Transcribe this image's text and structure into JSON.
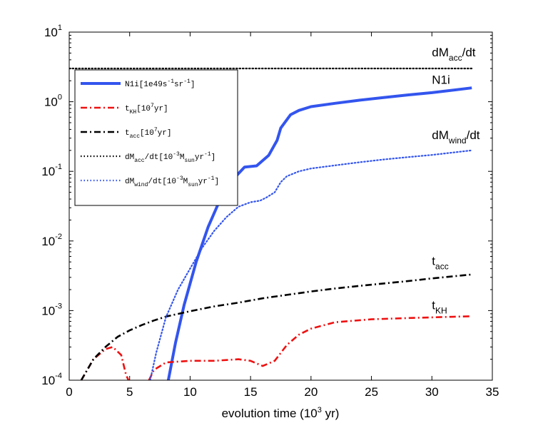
{
  "chart_data": {
    "type": "line",
    "title": "",
    "xlabel": "evolution time (10",
    "xlabel_sup": "3",
    "xlabel_tail": " yr)",
    "ylabel": "",
    "xlim": [
      0,
      35
    ],
    "ylim": [
      0.0001,
      10
    ],
    "yscale": "log",
    "x_ticks": [
      0,
      5,
      10,
      15,
      20,
      25,
      30,
      35
    ],
    "y_ticks": [
      {
        "value": 0.0001,
        "exp": "-4"
      },
      {
        "value": 0.001,
        "exp": "-3"
      },
      {
        "value": 0.01,
        "exp": "-2"
      },
      {
        "value": 0.1,
        "exp": "-1"
      },
      {
        "value": 1,
        "exp": "0"
      },
      {
        "value": 10,
        "exp": "1"
      }
    ],
    "y_tick_base": "10",
    "legend_position": "top-left",
    "series": [
      {
        "name": "N1i",
        "legend": {
          "main": "N1i[1e49s",
          "sup1": "-1",
          "mid": "sr",
          "sup2": "-1",
          "tail": "]"
        },
        "color": "#3355ee",
        "style": "solid",
        "points": [
          [
            8.2,
            0.0001
          ],
          [
            8.8,
            0.00035
          ],
          [
            9.5,
            0.0012
          ],
          [
            10.5,
            0.005
          ],
          [
            11.5,
            0.016
          ],
          [
            12.5,
            0.04
          ],
          [
            13.5,
            0.075
          ],
          [
            14.5,
            0.115
          ],
          [
            15.5,
            0.12
          ],
          [
            16.5,
            0.17
          ],
          [
            17.2,
            0.28
          ],
          [
            17.5,
            0.42
          ],
          [
            18.3,
            0.65
          ],
          [
            19,
            0.75
          ],
          [
            20,
            0.85
          ],
          [
            22,
            0.95
          ],
          [
            24,
            1.05
          ],
          [
            26,
            1.15
          ],
          [
            28,
            1.25
          ],
          [
            30,
            1.35
          ],
          [
            33.3,
            1.58
          ]
        ]
      },
      {
        "name": "t_KH",
        "legend": {
          "main": "t",
          "sub": "KH",
          "tail": "[10",
          "sup": "7",
          "tail2": "yr]"
        },
        "color": "#ee1111",
        "style": "dashdot",
        "segments": [
          [
            [
              1,
              0.0001
            ],
            [
              2,
              0.0002
            ],
            [
              3,
              0.00028
            ],
            [
              3.6,
              0.0003
            ],
            [
              4.3,
              0.00023
            ],
            [
              4.7,
              0.00012
            ],
            [
              4.9,
              0.0001
            ]
          ],
          [
            [
              6.6,
              0.0001
            ],
            [
              7,
              0.00014
            ],
            [
              8,
              0.00018
            ],
            [
              10,
              0.00019
            ],
            [
              12,
              0.00019
            ],
            [
              14,
              0.0002
            ],
            [
              15,
              0.00019
            ],
            [
              16,
              0.00016
            ],
            [
              17,
              0.00019
            ],
            [
              18,
              0.00032
            ],
            [
              19,
              0.00045
            ],
            [
              20,
              0.00055
            ],
            [
              22,
              0.00068
            ],
            [
              25,
              0.00075
            ],
            [
              28,
              0.00078
            ],
            [
              30,
              0.0008
            ],
            [
              33.3,
              0.00083
            ]
          ]
        ]
      },
      {
        "name": "t_acc",
        "legend": {
          "main": "t",
          "sub": "acc",
          "tail": "[10",
          "sup": "7",
          "tail2": "yr]"
        },
        "color": "#000000",
        "style": "dashdot",
        "points": [
          [
            1,
            0.0001
          ],
          [
            2,
            0.0002
          ],
          [
            3,
            0.0003
          ],
          [
            4,
            0.00042
          ],
          [
            5,
            0.00052
          ],
          [
            6,
            0.00062
          ],
          [
            7,
            0.00072
          ],
          [
            8,
            0.00082
          ],
          [
            10,
            0.00098
          ],
          [
            12,
            0.00115
          ],
          [
            14,
            0.0013
          ],
          [
            16,
            0.0015
          ],
          [
            18,
            0.00168
          ],
          [
            20,
            0.00188
          ],
          [
            22,
            0.00208
          ],
          [
            24,
            0.00226
          ],
          [
            26,
            0.00245
          ],
          [
            28,
            0.00265
          ],
          [
            30,
            0.0029
          ],
          [
            33.3,
            0.0033
          ]
        ]
      },
      {
        "name": "dM_acc/dt",
        "legend": {
          "main": "dM",
          "sub": "acc",
          "tail": "/dt[10",
          "sup": "-3",
          "tail2": "M",
          "sub2": "sun",
          "tail3": "yr",
          "sup2": "-1",
          "tail4": "]"
        },
        "color": "#000000",
        "style": "dotted",
        "points": [
          [
            0,
            3.0
          ],
          [
            33.3,
            3.0
          ]
        ]
      },
      {
        "name": "dM_wind/dt",
        "legend": {
          "main": "dM",
          "sub": "wind",
          "tail": "/dt[10",
          "sup": "-3",
          "tail2": "M",
          "sub2": "sun",
          "tail3": "yr",
          "sup2": "-1",
          "tail4": "]"
        },
        "color": "#3355ee",
        "style": "dotted",
        "points": [
          [
            6.7,
            0.0001
          ],
          [
            7.2,
            0.00025
          ],
          [
            8,
            0.0008
          ],
          [
            9,
            0.002
          ],
          [
            10,
            0.004
          ],
          [
            11,
            0.008
          ],
          [
            12,
            0.014
          ],
          [
            13,
            0.022
          ],
          [
            14,
            0.031
          ],
          [
            15,
            0.036
          ],
          [
            15.8,
            0.038
          ],
          [
            16.3,
            0.042
          ],
          [
            17,
            0.05
          ],
          [
            17.5,
            0.07
          ],
          [
            18,
            0.085
          ],
          [
            19,
            0.1
          ],
          [
            20,
            0.11
          ],
          [
            22,
            0.122
          ],
          [
            24,
            0.135
          ],
          [
            26,
            0.148
          ],
          [
            28,
            0.16
          ],
          [
            30,
            0.172
          ],
          [
            33.3,
            0.2
          ]
        ]
      }
    ],
    "annotations": [
      {
        "base": "dM",
        "sub": "acc",
        "tail": "/dt",
        "x": 30,
        "y": 4.5
      },
      {
        "base": "N1i",
        "sub": "",
        "tail": "",
        "x": 30,
        "y": 1.8
      },
      {
        "base": "dM",
        "sub": "wind",
        "tail": "/dt",
        "x": 30,
        "y": 0.29
      },
      {
        "base": "t",
        "sub": "acc",
        "tail": "",
        "x": 30,
        "y": 0.0045
      },
      {
        "base": "t",
        "sub": "KH",
        "tail": "",
        "x": 30,
        "y": 0.00105
      }
    ]
  }
}
